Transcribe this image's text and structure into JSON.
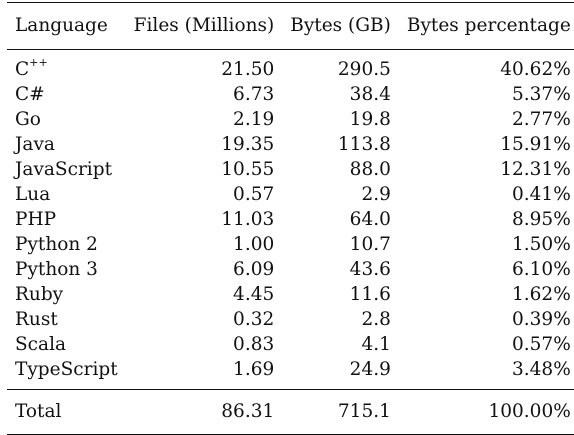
{
  "table": {
    "headers": [
      "Language",
      "Files (Millions)",
      "Bytes (GB)",
      "Bytes percentage"
    ],
    "rows": [
      {
        "language_base": "C",
        "language_sup": "++",
        "files": "21.50",
        "bytes": "290.5",
        "percentage": "40.62%"
      },
      {
        "language_base": "C#",
        "language_sup": "",
        "files": "6.73",
        "bytes": "38.4",
        "percentage": "5.37%"
      },
      {
        "language_base": "Go",
        "language_sup": "",
        "files": "2.19",
        "bytes": "19.8",
        "percentage": "2.77%"
      },
      {
        "language_base": "Java",
        "language_sup": "",
        "files": "19.35",
        "bytes": "113.8",
        "percentage": "15.91%"
      },
      {
        "language_base": "JavaScript",
        "language_sup": "",
        "files": "10.55",
        "bytes": "88.0",
        "percentage": "12.31%"
      },
      {
        "language_base": "Lua",
        "language_sup": "",
        "files": "0.57",
        "bytes": "2.9",
        "percentage": "0.41%"
      },
      {
        "language_base": "PHP",
        "language_sup": "",
        "files": "11.03",
        "bytes": "64.0",
        "percentage": "8.95%"
      },
      {
        "language_base": "Python 2",
        "language_sup": "",
        "files": "1.00",
        "bytes": "10.7",
        "percentage": "1.50%"
      },
      {
        "language_base": "Python 3",
        "language_sup": "",
        "files": "6.09",
        "bytes": "43.6",
        "percentage": "6.10%"
      },
      {
        "language_base": "Ruby",
        "language_sup": "",
        "files": "4.45",
        "bytes": "11.6",
        "percentage": "1.62%"
      },
      {
        "language_base": "Rust",
        "language_sup": "",
        "files": "0.32",
        "bytes": "2.8",
        "percentage": "0.39%"
      },
      {
        "language_base": "Scala",
        "language_sup": "",
        "files": "0.83",
        "bytes": "4.1",
        "percentage": "0.57%"
      },
      {
        "language_base": "TypeScript",
        "language_sup": "",
        "files": "1.69",
        "bytes": "24.9",
        "percentage": "3.48%"
      }
    ],
    "total": {
      "label": "Total",
      "files": "86.31",
      "bytes": "715.1",
      "percentage": "100.00%"
    }
  }
}
